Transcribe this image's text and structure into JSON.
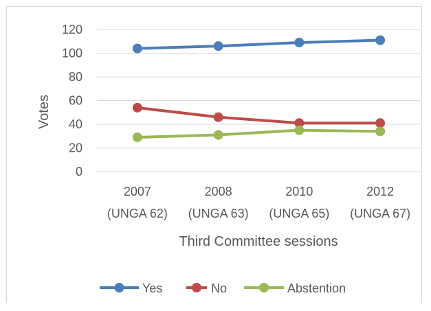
{
  "chart_data": {
    "type": "line",
    "title": "",
    "xlabel": "Third Committee sessions",
    "ylabel": "Votes",
    "ylim": [
      0,
      120
    ],
    "yticks": [
      "0",
      "20",
      "40",
      "60",
      "80",
      "100",
      "120"
    ],
    "categories": [
      {
        "line1": "2007",
        "line2": "(UNGA 62)"
      },
      {
        "line1": "2008",
        "line2": "(UNGA 63)"
      },
      {
        "line1": "2010",
        "line2": "(UNGA 65)"
      },
      {
        "line1": "2012",
        "line2": "(UNGA 67)"
      }
    ],
    "grid": "horizontal",
    "legend": "bottom",
    "series": [
      {
        "name": "Yes",
        "color": "#4a7ebb",
        "values": [
          104,
          106,
          109,
          111
        ]
      },
      {
        "name": "No",
        "color": "#be4b48",
        "values": [
          54,
          46,
          41,
          41
        ]
      },
      {
        "name": "Abstention",
        "color": "#98b954",
        "values": [
          29,
          31,
          35,
          34
        ]
      }
    ]
  }
}
